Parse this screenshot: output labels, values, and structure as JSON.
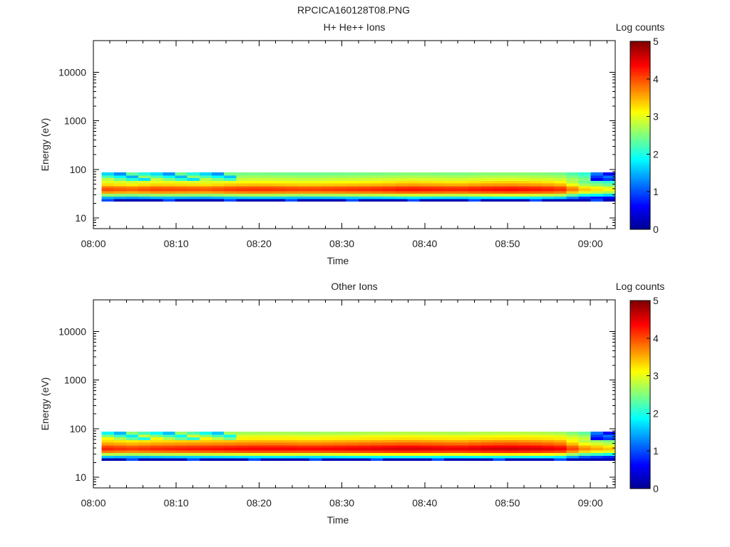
{
  "figure_title": "RPCICA160128T08.PNG",
  "colormap": [
    "#00008f",
    "#0000ff",
    "#007fff",
    "#00ffff",
    "#7fff7f",
    "#ffff00",
    "#ff7f00",
    "#ff0000",
    "#7f0000"
  ],
  "chart_data": [
    {
      "type": "heatmap",
      "title": "H+ He++ Ions",
      "xlabel": "Time",
      "ylabel": "Energy (eV)",
      "colorbar_label": "Log counts",
      "x_ticks": [
        "08:00",
        "08:10",
        "08:20",
        "08:30",
        "08:40",
        "08:50",
        "09:00"
      ],
      "x_range": [
        "08:00",
        "09:03"
      ],
      "y_scale": "log",
      "y_ticks": [
        "10",
        "100",
        "1000",
        "10000"
      ],
      "y_range": [
        6,
        45000
      ],
      "colorbar_ticks": [
        "0",
        "1",
        "2",
        "3",
        "4",
        "5"
      ],
      "colorbar_range": [
        0,
        5
      ],
      "data_time_range": [
        "08:01",
        "09:03"
      ],
      "energy_bins_eV": [
        22,
        25,
        28,
        32,
        36,
        41,
        46,
        52,
        59,
        67,
        76,
        86
      ],
      "profile_log_counts": [
        0.3,
        1.5,
        2.6,
        3.6,
        4.0,
        3.8,
        3.3,
        3.0,
        2.8,
        2.6,
        2.4,
        2.1
      ],
      "time_modulation": [
        0.0,
        -0.1,
        0.05,
        0.0,
        -0.05,
        0.1,
        0.15,
        0.1,
        0.05,
        0.1,
        0.15,
        0.2,
        0.3,
        0.25,
        0.2,
        0.3,
        0.35,
        0.3,
        0.2,
        -0.6,
        -0.9
      ],
      "noisy_high_energy_until": "08:16"
    },
    {
      "type": "heatmap",
      "title": "Other Ions",
      "xlabel": "Time",
      "ylabel": "Energy (eV)",
      "colorbar_label": "Log counts",
      "x_ticks": [
        "08:00",
        "08:10",
        "08:20",
        "08:30",
        "08:40",
        "08:50",
        "09:00"
      ],
      "x_range": [
        "08:00",
        "09:03"
      ],
      "y_scale": "log",
      "y_ticks": [
        "10",
        "100",
        "1000",
        "10000"
      ],
      "y_range": [
        6,
        45000
      ],
      "colorbar_ticks": [
        "0",
        "1",
        "2",
        "3",
        "4",
        "5"
      ],
      "colorbar_range": [
        0,
        5
      ],
      "data_time_range": [
        "08:01",
        "09:03"
      ],
      "energy_bins_eV": [
        22,
        25,
        28,
        32,
        36,
        41,
        46,
        52,
        59,
        67,
        76,
        86
      ],
      "profile_log_counts": [
        0.3,
        1.6,
        2.8,
        3.8,
        4.2,
        4.0,
        3.6,
        3.3,
        3.1,
        2.9,
        2.6,
        2.2
      ],
      "time_modulation": [
        0.0,
        -0.1,
        0.0,
        0.05,
        0.1,
        0.15,
        0.2,
        0.2,
        0.15,
        0.2,
        0.25,
        0.3,
        0.35,
        0.3,
        0.25,
        0.35,
        0.4,
        0.35,
        0.25,
        -0.5,
        -0.8
      ],
      "noisy_high_energy_until": "08:16"
    }
  ]
}
